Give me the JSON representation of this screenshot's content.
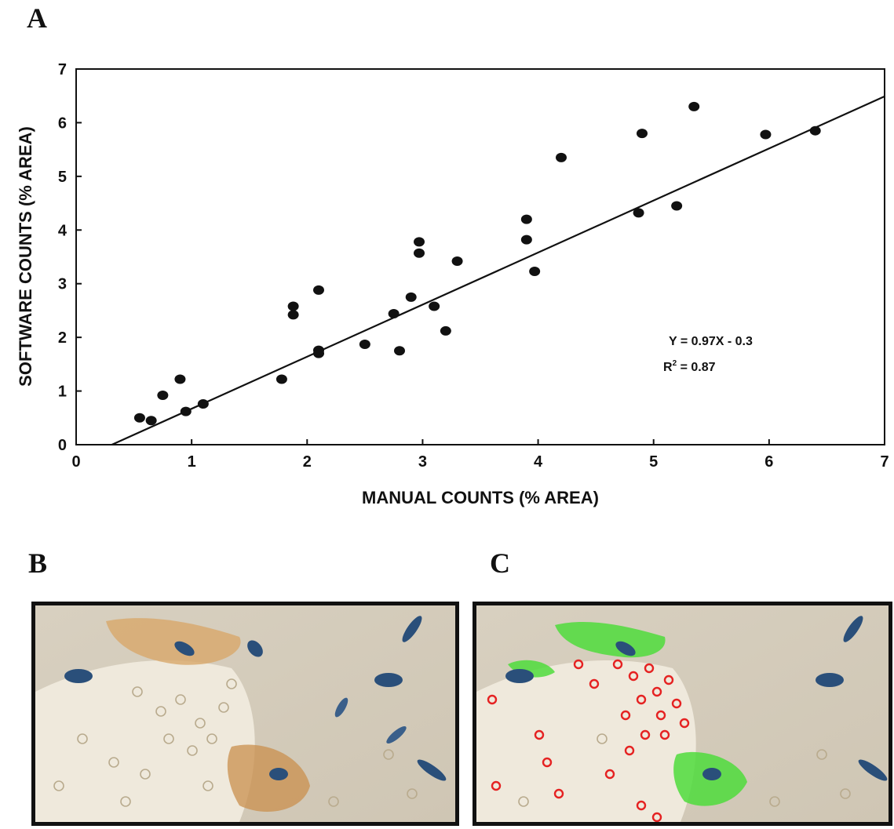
{
  "panels": {
    "a": "A",
    "b": "B",
    "c": "C"
  },
  "chart_data": {
    "type": "scatter",
    "xlabel": "MANUAL COUNTS (% AREA)",
    "ylabel": "SOFTWARE COUNTS (% AREA)",
    "xlim": [
      0,
      7
    ],
    "ylim": [
      0,
      7
    ],
    "xticks": [
      "0",
      "1",
      "2",
      "3",
      "4",
      "5",
      "6",
      "7"
    ],
    "yticks": [
      "0",
      "1",
      "2",
      "3",
      "4",
      "5",
      "6",
      "7"
    ],
    "grid": false,
    "points": [
      [
        0.55,
        0.5
      ],
      [
        0.65,
        0.45
      ],
      [
        0.75,
        0.92
      ],
      [
        0.9,
        1.22
      ],
      [
        0.95,
        0.62
      ],
      [
        1.1,
        0.76
      ],
      [
        1.78,
        1.22
      ],
      [
        1.88,
        2.58
      ],
      [
        1.88,
        2.42
      ],
      [
        2.1,
        2.88
      ],
      [
        2.1,
        1.76
      ],
      [
        2.1,
        1.7
      ],
      [
        2.5,
        1.87
      ],
      [
        2.75,
        2.44
      ],
      [
        2.8,
        1.75
      ],
      [
        2.9,
        2.75
      ],
      [
        2.97,
        3.78
      ],
      [
        2.97,
        3.57
      ],
      [
        3.1,
        2.58
      ],
      [
        3.2,
        2.12
      ],
      [
        3.3,
        3.42
      ],
      [
        3.9,
        4.2
      ],
      [
        3.9,
        3.82
      ],
      [
        3.97,
        3.23
      ],
      [
        4.2,
        5.35
      ],
      [
        4.87,
        4.32
      ],
      [
        4.9,
        5.8
      ],
      [
        5.2,
        4.45
      ],
      [
        5.35,
        6.3
      ],
      [
        5.97,
        5.78
      ],
      [
        6.4,
        5.85
      ]
    ],
    "fit": {
      "slope": 0.97,
      "intercept": -0.3
    },
    "annotations": {
      "equation": "Y = 0.97X - 0.3",
      "r2_prefix": "R",
      "r2_sup": "2",
      "r2_value": " = 0.87"
    }
  }
}
